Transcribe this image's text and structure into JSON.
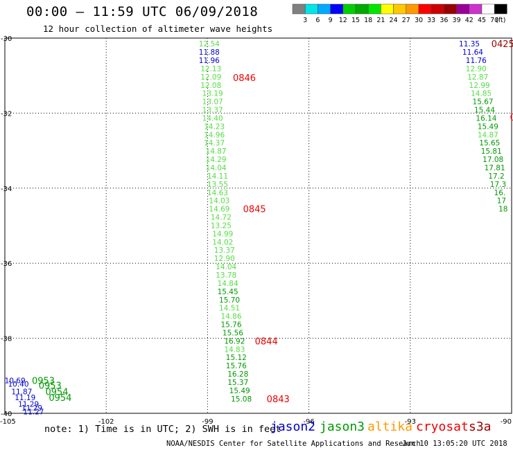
{
  "header": {
    "title": "00:00 – 11:59 UTC 06/09/2018",
    "subtitle": "12 hour collection of altimeter wave heights"
  },
  "colorbar": {
    "colors": [
      "#808080",
      "#00e5e5",
      "#00aaff",
      "#0000ff",
      "#00d000",
      "#00aa00",
      "#00e600",
      "#ffff00",
      "#ffc800",
      "#ff9900",
      "#ff0000",
      "#cc0000",
      "#990000",
      "#990099",
      "#cc33cc",
      "#ffffff",
      "#000000"
    ],
    "labels": [
      "3",
      "6",
      "9",
      "12",
      "15",
      "18",
      "21",
      "24",
      "27",
      "30",
      "33",
      "36",
      "39",
      "42",
      "45",
      "70",
      "(ft)"
    ]
  },
  "axes": {
    "lon_ticks": [
      "-105",
      "-102",
      "-99",
      "-96",
      "-93",
      "-90"
    ],
    "lat_ticks": [
      "-30",
      "-32",
      "-34",
      "-36",
      "-38",
      "-40"
    ],
    "lon_range": [
      -105,
      -90
    ],
    "lat_range": [
      -40,
      -30
    ]
  },
  "status_colors": {
    "blue": "#0000cc",
    "light_green": "#55dd44",
    "dark_green": "#009900",
    "red": "#ee0000",
    "dark_red": "#990000"
  },
  "chart_data": {
    "type": "scatter",
    "tracks": [
      {
        "name": "jason2_west",
        "points": [
          {
            "lon": -104.7,
            "lat": -39.12,
            "v": "10.69",
            "c": "blue"
          },
          {
            "lon": -104.6,
            "lat": -39.22,
            "v": "10.40",
            "c": "blue"
          },
          {
            "lon": -104.5,
            "lat": -39.42,
            "v": "11.87",
            "c": "blue"
          },
          {
            "lon": -104.4,
            "lat": -39.58,
            "v": "11.19",
            "c": "blue"
          },
          {
            "lon": -104.3,
            "lat": -39.75,
            "v": "11.29",
            "c": "blue"
          },
          {
            "lon": -104.2,
            "lat": -39.85,
            "v": "11.29",
            "c": "blue"
          },
          {
            "lon": -104.15,
            "lat": -39.95,
            "v": "11.27",
            "c": "blue"
          }
        ]
      },
      {
        "name": "main_track",
        "points": [
          {
            "lon": -98.95,
            "lat": -30.15,
            "v": "12.54",
            "c": "light_green"
          },
          {
            "lon": -98.95,
            "lat": -30.37,
            "v": "11.88",
            "c": "blue"
          },
          {
            "lon": -98.95,
            "lat": -30.59,
            "v": "11.96",
            "c": "blue"
          },
          {
            "lon": -98.9,
            "lat": -30.81,
            "v": "12.13",
            "c": "light_green"
          },
          {
            "lon": -98.9,
            "lat": -31.03,
            "v": "12.09",
            "c": "light_green"
          },
          {
            "lon": -98.9,
            "lat": -31.25,
            "v": "12.08",
            "c": "light_green"
          },
          {
            "lon": -98.85,
            "lat": -31.47,
            "v": "13.19",
            "c": "light_green"
          },
          {
            "lon": -98.85,
            "lat": -31.69,
            "v": "13.07",
            "c": "light_green"
          },
          {
            "lon": -98.85,
            "lat": -31.91,
            "v": "13.37",
            "c": "light_green"
          },
          {
            "lon": -98.85,
            "lat": -32.13,
            "v": "14.40",
            "c": "light_green"
          },
          {
            "lon": -98.8,
            "lat": -32.35,
            "v": "14.23",
            "c": "light_green"
          },
          {
            "lon": -98.8,
            "lat": -32.57,
            "v": "14.96",
            "c": "light_green"
          },
          {
            "lon": -98.8,
            "lat": -32.79,
            "v": "14.37",
            "c": "light_green"
          },
          {
            "lon": -98.75,
            "lat": -33.01,
            "v": "14.87",
            "c": "light_green"
          },
          {
            "lon": -98.75,
            "lat": -33.23,
            "v": "14.29",
            "c": "light_green"
          },
          {
            "lon": -98.75,
            "lat": -33.45,
            "v": "14.04",
            "c": "light_green"
          },
          {
            "lon": -98.7,
            "lat": -33.67,
            "v": "14.11",
            "c": "light_green"
          },
          {
            "lon": -98.7,
            "lat": -33.89,
            "v": "13.55",
            "c": "light_green"
          },
          {
            "lon": -98.7,
            "lat": -34.11,
            "v": "14.63",
            "c": "light_green"
          },
          {
            "lon": -98.65,
            "lat": -34.33,
            "v": "14.03",
            "c": "light_green"
          },
          {
            "lon": -98.65,
            "lat": -34.55,
            "v": "14.69",
            "c": "light_green"
          },
          {
            "lon": -98.6,
            "lat": -34.77,
            "v": "14.72",
            "c": "light_green"
          },
          {
            "lon": -98.6,
            "lat": -34.99,
            "v": "13.25",
            "c": "light_green"
          },
          {
            "lon": -98.55,
            "lat": -35.21,
            "v": "14.99",
            "c": "light_green"
          },
          {
            "lon": -98.55,
            "lat": -35.43,
            "v": "14.02",
            "c": "light_green"
          },
          {
            "lon": -98.5,
            "lat": -35.65,
            "v": "13.37",
            "c": "light_green"
          },
          {
            "lon": -98.5,
            "lat": -35.87,
            "v": "12.90",
            "c": "light_green"
          },
          {
            "lon": -98.45,
            "lat": -36.09,
            "v": "14.04",
            "c": "light_green"
          },
          {
            "lon": -98.45,
            "lat": -36.31,
            "v": "13.78",
            "c": "light_green"
          },
          {
            "lon": -98.4,
            "lat": -36.53,
            "v": "14.84",
            "c": "light_green"
          },
          {
            "lon": -98.4,
            "lat": -36.75,
            "v": "15.45",
            "c": "dark_green"
          },
          {
            "lon": -98.35,
            "lat": -36.97,
            "v": "15.70",
            "c": "dark_green"
          },
          {
            "lon": -98.35,
            "lat": -37.19,
            "v": "14.51",
            "c": "light_green"
          },
          {
            "lon": -98.3,
            "lat": -37.41,
            "v": "14.86",
            "c": "light_green"
          },
          {
            "lon": -98.3,
            "lat": -37.63,
            "v": "15.76",
            "c": "dark_green"
          },
          {
            "lon": -98.25,
            "lat": -37.85,
            "v": "15.56",
            "c": "dark_green"
          },
          {
            "lon": -98.2,
            "lat": -38.07,
            "v": "16.92",
            "c": "dark_green"
          },
          {
            "lon": -98.2,
            "lat": -38.29,
            "v": "14.83",
            "c": "light_green"
          },
          {
            "lon": -98.15,
            "lat": -38.51,
            "v": "15.12",
            "c": "dark_green"
          },
          {
            "lon": -98.15,
            "lat": -38.73,
            "v": "15.76",
            "c": "dark_green"
          },
          {
            "lon": -98.1,
            "lat": -38.95,
            "v": "16.28",
            "c": "dark_green"
          },
          {
            "lon": -98.1,
            "lat": -39.17,
            "v": "15.37",
            "c": "dark_green"
          },
          {
            "lon": -98.05,
            "lat": -39.39,
            "v": "15.49",
            "c": "dark_green"
          },
          {
            "lon": -98.0,
            "lat": -39.61,
            "v": "15.08",
            "c": "dark_green"
          }
        ]
      },
      {
        "name": "east_track",
        "points": [
          {
            "lon": -91.25,
            "lat": -30.15,
            "v": "11.35",
            "c": "blue"
          },
          {
            "lon": -91.15,
            "lat": -30.37,
            "v": "11.64",
            "c": "blue"
          },
          {
            "lon": -91.05,
            "lat": -30.59,
            "v": "11.76",
            "c": "blue"
          },
          {
            "lon": -91.05,
            "lat": -30.81,
            "v": "12.90",
            "c": "light_green"
          },
          {
            "lon": -91.0,
            "lat": -31.03,
            "v": "12.87",
            "c": "light_green"
          },
          {
            "lon": -90.95,
            "lat": -31.25,
            "v": "12.99",
            "c": "light_green"
          },
          {
            "lon": -90.9,
            "lat": -31.47,
            "v": "14.85",
            "c": "light_green"
          },
          {
            "lon": -90.85,
            "lat": -31.69,
            "v": "15.67",
            "c": "dark_green"
          },
          {
            "lon": -90.8,
            "lat": -31.91,
            "v": "15.44",
            "c": "dark_green"
          },
          {
            "lon": -90.75,
            "lat": -32.13,
            "v": "16.14",
            "c": "dark_green"
          },
          {
            "lon": -90.7,
            "lat": -32.35,
            "v": "15.49",
            "c": "dark_green"
          },
          {
            "lon": -90.7,
            "lat": -32.57,
            "v": "14.87",
            "c": "light_green"
          },
          {
            "lon": -90.65,
            "lat": -32.79,
            "v": "15.65",
            "c": "dark_green"
          },
          {
            "lon": -90.6,
            "lat": -33.01,
            "v": "15.81",
            "c": "dark_green"
          },
          {
            "lon": -90.55,
            "lat": -33.23,
            "v": "17.08",
            "c": "dark_green"
          },
          {
            "lon": -90.5,
            "lat": -33.45,
            "v": "17.81",
            "c": "dark_green"
          },
          {
            "lon": -90.45,
            "lat": -33.67,
            "v": "17.2",
            "c": "dark_green"
          },
          {
            "lon": -90.4,
            "lat": -33.89,
            "v": "17.3",
            "c": "dark_green"
          },
          {
            "lon": -90.35,
            "lat": -34.11,
            "v": "16.",
            "c": "dark_green"
          },
          {
            "lon": -90.3,
            "lat": -34.33,
            "v": "17",
            "c": "dark_green"
          },
          {
            "lon": -90.25,
            "lat": -34.55,
            "v": "18",
            "c": "dark_green"
          }
        ]
      }
    ],
    "time_labels": [
      {
        "lon": -98.25,
        "lat": -31.05,
        "t": "0846",
        "c": "red"
      },
      {
        "lon": -97.95,
        "lat": -34.55,
        "t": "0845",
        "c": "red"
      },
      {
        "lon": -97.6,
        "lat": -38.07,
        "t": "0844",
        "c": "red"
      },
      {
        "lon": -97.25,
        "lat": -39.61,
        "t": "0843",
        "c": "red"
      },
      {
        "lon": -90.6,
        "lat": -30.15,
        "t": "0425",
        "c": "dark_red"
      },
      {
        "lon": -90.05,
        "lat": -32.1,
        "t": "0",
        "c": "red"
      },
      {
        "lon": -104.2,
        "lat": -39.12,
        "t": "0953",
        "c": "dark_green"
      },
      {
        "lon": -104.0,
        "lat": -39.25,
        "t": "0953",
        "c": "dark_green"
      },
      {
        "lon": -103.8,
        "lat": -39.42,
        "t": "0954",
        "c": "dark_green"
      },
      {
        "lon": -103.7,
        "lat": -39.58,
        "t": "0954",
        "c": "dark_green"
      }
    ]
  },
  "footer": {
    "note": "note: 1) Time is in UTC; 2) SWH is in feet",
    "legend": [
      {
        "label": "jason2",
        "color": "#0000cc"
      },
      {
        "label": "jason3",
        "color": "#009900"
      },
      {
        "label": "altika",
        "color": "#ff9900"
      },
      {
        "label": "cryosat",
        "color": "#ee0000"
      },
      {
        "label": "s3a",
        "color": "#990000"
      }
    ],
    "credit": "NOAA/NESDIS Center for Satellite Applications and Research",
    "timestamp": "Jun 10 13:05:20 UTC 2018"
  }
}
